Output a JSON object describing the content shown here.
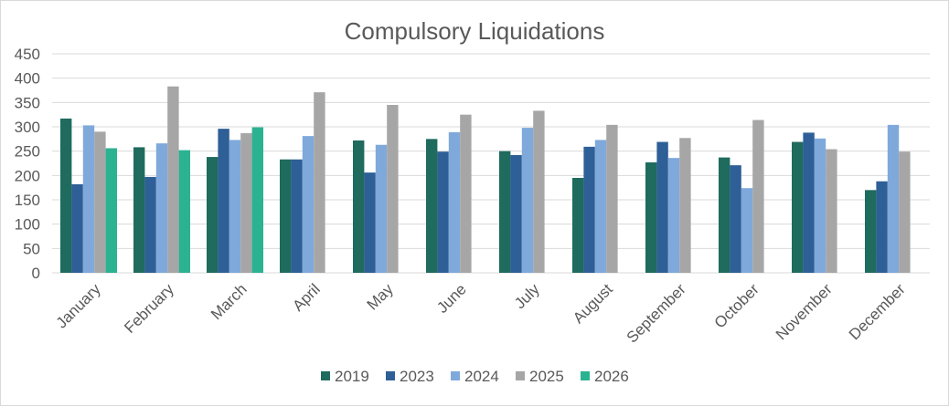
{
  "chart_data": {
    "type": "bar",
    "title": "Compulsory Liquidations",
    "xlabel": "",
    "ylabel": "",
    "ylim": [
      0,
      450
    ],
    "yticks": [
      0,
      50,
      100,
      150,
      200,
      250,
      300,
      350,
      400,
      450
    ],
    "grid": true,
    "legend_position": "bottom",
    "categories": [
      "January",
      "February",
      "March",
      "April",
      "May",
      "June",
      "July",
      "August",
      "September",
      "October",
      "November",
      "December"
    ],
    "series": [
      {
        "name": "2019",
        "color": "#1f6b5e",
        "values": [
          317,
          258,
          238,
          233,
          272,
          275,
          250,
          195,
          227,
          237,
          269,
          170
        ]
      },
      {
        "name": "2023",
        "color": "#2e5f96",
        "values": [
          182,
          197,
          296,
          233,
          206,
          249,
          242,
          259,
          269,
          221,
          288,
          188
        ]
      },
      {
        "name": "2024",
        "color": "#7fa9db",
        "values": [
          303,
          266,
          273,
          281,
          263,
          289,
          298,
          273,
          236,
          174,
          276,
          304
        ]
      },
      {
        "name": "2025",
        "color": "#a6a6a6",
        "values": [
          290,
          383,
          287,
          371,
          345,
          325,
          333,
          304,
          277,
          314,
          254,
          249
        ]
      },
      {
        "name": "2026",
        "color": "#2bb291",
        "values": [
          256,
          252,
          299,
          null,
          null,
          null,
          null,
          null,
          null,
          null,
          null,
          null
        ]
      }
    ]
  }
}
